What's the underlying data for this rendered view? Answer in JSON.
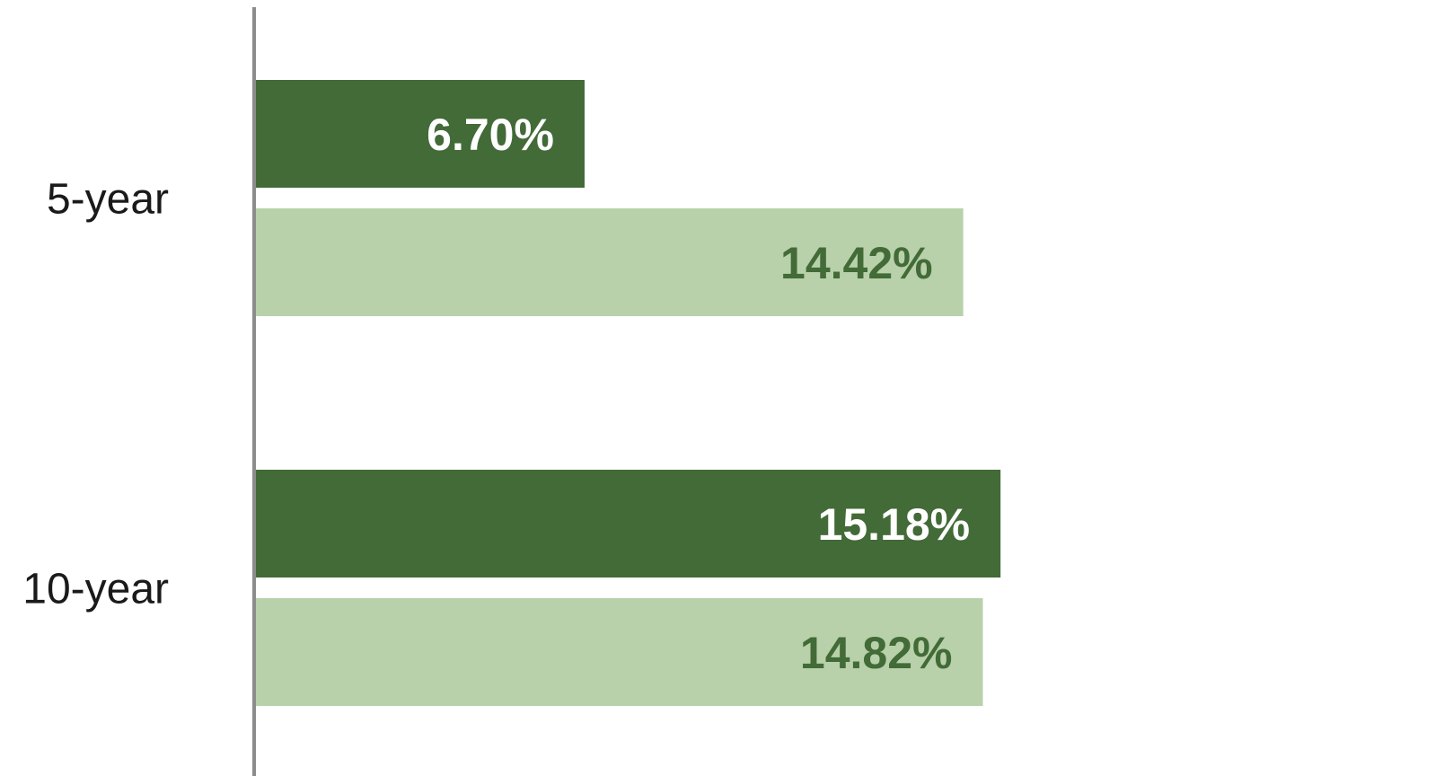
{
  "chart_data": {
    "type": "bar",
    "orientation": "horizontal",
    "categories": [
      "5-year",
      "10-year"
    ],
    "series": [
      {
        "values": [
          6.7,
          15.18
        ],
        "labels": [
          "6.70%",
          "15.18%"
        ],
        "color": "#426b37",
        "label_color": "#ffffff"
      },
      {
        "values": [
          14.42,
          14.82
        ],
        "labels": [
          "14.42%",
          "14.82%"
        ],
        "color": "#b8d1aa",
        "label_color": "#426b37"
      }
    ],
    "xlim": [
      0,
      23.8
    ],
    "grid": false,
    "axis_color": "#8c8c8c"
  }
}
